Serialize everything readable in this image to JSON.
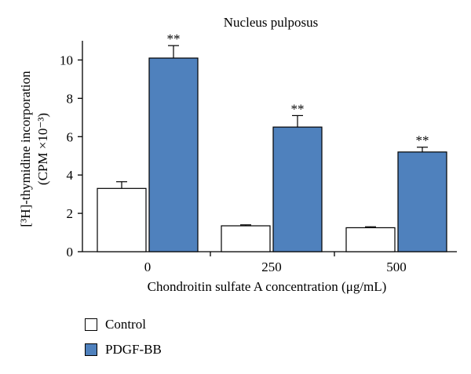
{
  "chart_data": {
    "type": "bar",
    "title": "Nucleus pulposus",
    "xlabel": "Chondroitin sulfate A concentration (μg/mL)",
    "ylabel_line1": "[³H]-thymidine incorporation",
    "ylabel_line2": "(CPM ×10⁻³)",
    "categories": [
      "0",
      "250",
      "500"
    ],
    "ylim": [
      0,
      11
    ],
    "yticks": [
      "0",
      "2",
      "4",
      "6",
      "8",
      "10"
    ],
    "series": [
      {
        "name": "Control",
        "color": "#ffffff",
        "values": [
          3.3,
          1.35,
          1.25
        ],
        "errors": [
          0.35,
          0.05,
          0.05
        ],
        "annotations": [
          "",
          "",
          ""
        ]
      },
      {
        "name": "PDGF-BB",
        "color": "#4f81bd",
        "values": [
          10.1,
          6.5,
          5.2
        ],
        "errors": [
          0.65,
          0.6,
          0.25
        ],
        "annotations": [
          "**",
          "**",
          "**"
        ]
      }
    ],
    "legend_position": "bottom-left",
    "grid": false
  }
}
